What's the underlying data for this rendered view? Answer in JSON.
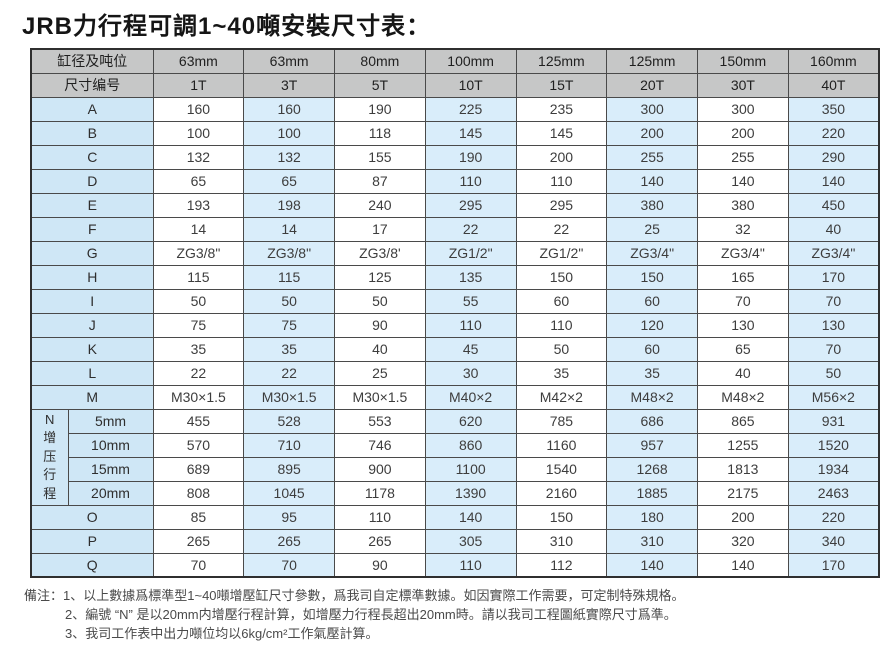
{
  "title": "JRB力行程可調1~40噸安裝尺寸表：",
  "colors": {
    "header_bg": "#c6c7c7",
    "label_bg": "#cfe7f6",
    "stripe_bg": "#d9edfa",
    "border": "#4a4a4a",
    "outer_border": "#2f2f2f",
    "title_color": "#151515",
    "text_color": "#3d3d3d",
    "note_color": "#4a4a4a"
  },
  "table": {
    "header_rows": [
      {
        "label": "缸径及吨位",
        "values": [
          "63mm",
          "63mm",
          "80mm",
          "100mm",
          "125mm",
          "125mm",
          "150mm",
          "160mm"
        ]
      },
      {
        "label": "尺寸编号",
        "values": [
          "1T",
          "3T",
          "5T",
          "10T",
          "15T",
          "20T",
          "30T",
          "40T"
        ]
      }
    ],
    "sections": [
      {
        "rows": [
          {
            "label": "A",
            "values": [
              "160",
              "160",
              "190",
              "225",
              "235",
              "300",
              "300",
              "350"
            ]
          },
          {
            "label": "B",
            "values": [
              "100",
              "100",
              "118",
              "145",
              "145",
              "200",
              "200",
              "220"
            ]
          },
          {
            "label": "C",
            "values": [
              "132",
              "132",
              "155",
              "190",
              "200",
              "255",
              "255",
              "290"
            ]
          },
          {
            "label": "D",
            "values": [
              "65",
              "65",
              "87",
              "110",
              "110",
              "140",
              "140",
              "140"
            ]
          },
          {
            "label": "E",
            "values": [
              "193",
              "198",
              "240",
              "295",
              "295",
              "380",
              "380",
              "450"
            ]
          },
          {
            "label": "F",
            "values": [
              "14",
              "14",
              "17",
              "22",
              "22",
              "25",
              "32",
              "40"
            ]
          },
          {
            "label": "G",
            "values": [
              "ZG3/8\"",
              "ZG3/8\"",
              "ZG3/8'",
              "ZG1/2\"",
              "ZG1/2\"",
              "ZG3/4\"",
              "ZG3/4\"",
              "ZG3/4\""
            ]
          },
          {
            "label": "H",
            "values": [
              "115",
              "115",
              "125",
              "135",
              "150",
              "150",
              "165",
              "170"
            ]
          },
          {
            "label": "I",
            "values": [
              "50",
              "50",
              "50",
              "55",
              "60",
              "60",
              "70",
              "70"
            ]
          },
          {
            "label": "J",
            "values": [
              "75",
              "75",
              "90",
              "110",
              "110",
              "120",
              "130",
              "130"
            ]
          },
          {
            "label": "K",
            "values": [
              "35",
              "35",
              "40",
              "45",
              "50",
              "60",
              "65",
              "70"
            ]
          },
          {
            "label": "L",
            "values": [
              "22",
              "22",
              "25",
              "30",
              "35",
              "35",
              "40",
              "50"
            ]
          },
          {
            "label": "M",
            "values": [
              "M30×1.5",
              "M30×1.5",
              "M30×1.5",
              "M40×2",
              "M42×2",
              "M48×2",
              "M48×2",
              "M56×2"
            ]
          }
        ]
      },
      {
        "group_label": "N\n增\n压\n行\n程",
        "rows": [
          {
            "label": "5mm",
            "values": [
              "455",
              "528",
              "553",
              "620",
              "785",
              "686",
              "865",
              "931"
            ]
          },
          {
            "label": "10mm",
            "values": [
              "570",
              "710",
              "746",
              "860",
              "1160",
              "957",
              "1255",
              "1520"
            ]
          },
          {
            "label": "15mm",
            "values": [
              "689",
              "895",
              "900",
              "1100",
              "1540",
              "1268",
              "1813",
              "1934"
            ]
          },
          {
            "label": "20mm",
            "values": [
              "808",
              "1045",
              "1178",
              "1390",
              "2160",
              "1885",
              "2175",
              "2463"
            ]
          }
        ]
      },
      {
        "rows": [
          {
            "label": "O",
            "values": [
              "85",
              "95",
              "110",
              "140",
              "150",
              "180",
              "200",
              "220"
            ]
          },
          {
            "label": "P",
            "values": [
              "265",
              "265",
              "265",
              "305",
              "310",
              "310",
              "320",
              "340"
            ]
          },
          {
            "label": "Q",
            "values": [
              "70",
              "70",
              "90",
              "110",
              "112",
              "140",
              "140",
              "170"
            ]
          }
        ]
      }
    ]
  },
  "notes": {
    "label": "備注：",
    "items": [
      "1、以上數據爲標準型1~40噸增壓缸尺寸參數，爲我司自定標準數據。如因實際工作需要，可定制特殊規格。",
      "2、編號 “N” 是以20mm内增壓行程計算，如增壓力行程長超出20mm時。請以我司工程圖紙實際尺寸爲準。",
      "3、我司工作表中出力噸位均以6kg/cm²工作氣壓計算。"
    ]
  }
}
